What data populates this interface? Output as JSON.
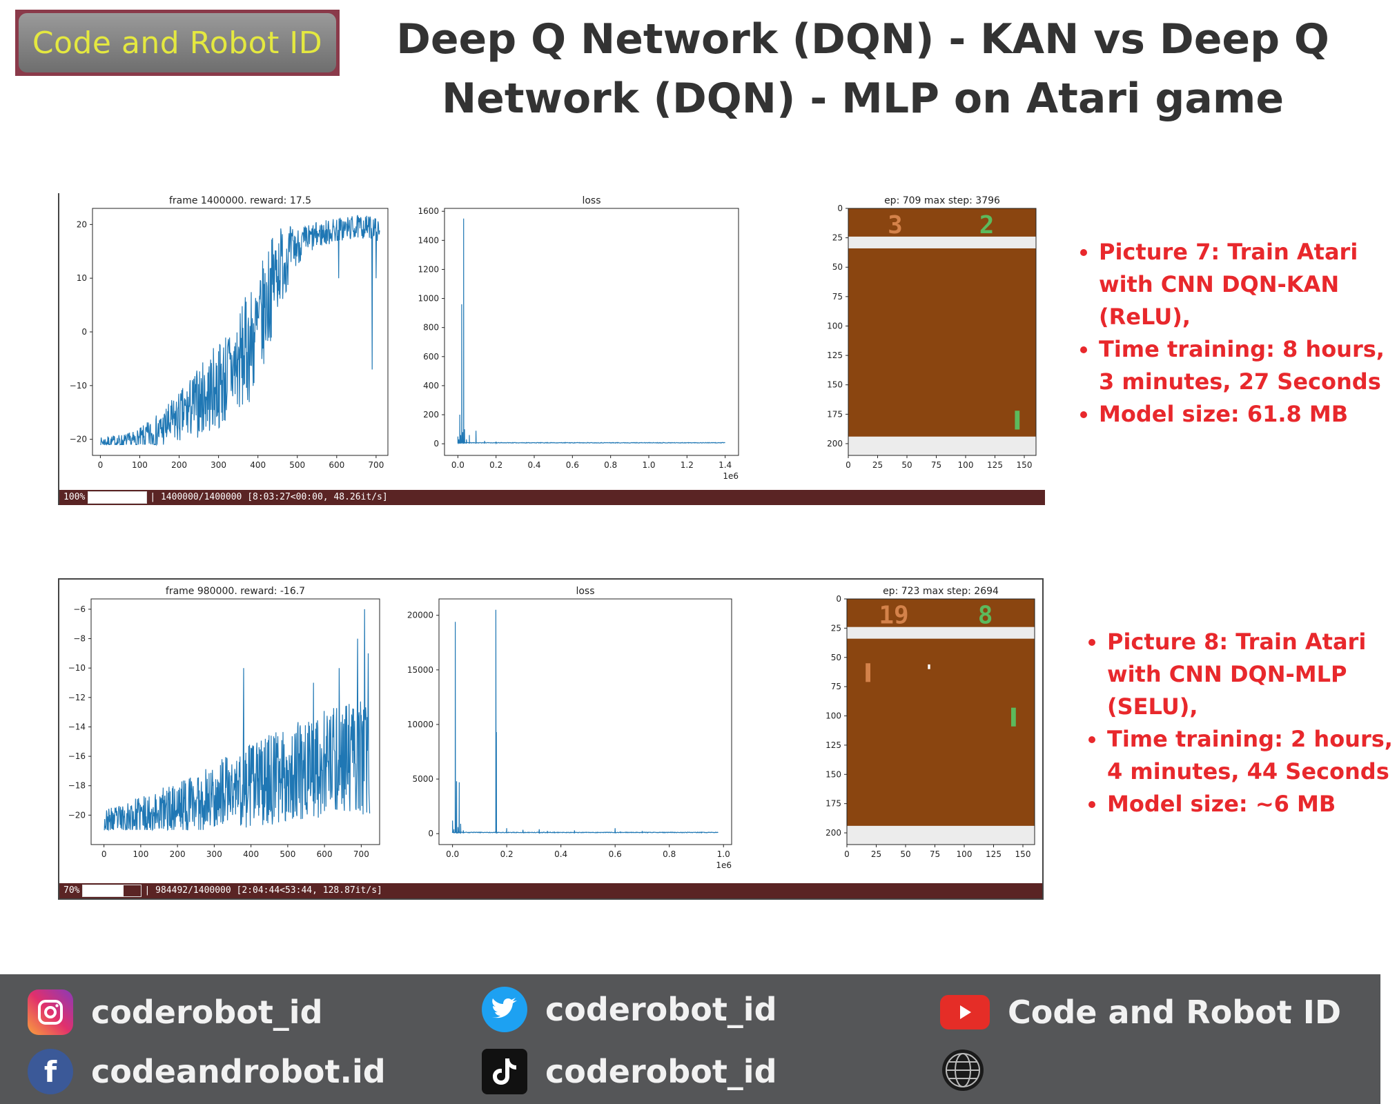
{
  "brand": {
    "logo_text": "Code and Robot ID"
  },
  "page_title": "Deep Q Network (DQN) - KAN vs Deep Q Network (DQN) - MLP on Atari game",
  "panels": [
    {
      "id": "top",
      "progress": {
        "percent_label": "100%",
        "fraction": 1.0,
        "text": "| 1400000/1400000 [8:03:27<00:00, 48.26it/s]"
      },
      "notes": [
        "Picture 7: Train Atari with CNN DQN-KAN (ReLU),",
        "Time training: 8 hours, 3 minutes, 27 Seconds",
        "Model size: 61.8 MB"
      ],
      "game": {
        "title": "ep: 709 max step: 3796",
        "score_left": "3",
        "score_right": "2",
        "xlim": [
          0,
          160
        ],
        "ylim": [
          210,
          0
        ],
        "xticks": [
          0,
          25,
          50,
          75,
          100,
          125,
          150
        ],
        "yticks": [
          0,
          25,
          50,
          75,
          100,
          125,
          150,
          175,
          200
        ],
        "bg_color": "#8a4510",
        "wall_color": "#ececec",
        "left_score_color": "#d4824a",
        "right_score_color": "#5cba5c",
        "paddles": [
          {
            "color": "#5cba5c",
            "x": 142,
            "y": 172,
            "w": 4,
            "h": 16
          }
        ],
        "ball": null
      }
    },
    {
      "id": "bottom",
      "progress": {
        "percent_label": "70%",
        "fraction": 0.7,
        "text": "| 984492/1400000 [2:04:44<53:44, 128.87it/s]"
      },
      "notes": [
        "Picture 8: Train Atari with CNN DQN-MLP (SELU),",
        "Time training: 2 hours, 4 minutes, 44 Seconds",
        "Model size: ~6 MB"
      ],
      "game": {
        "title": "ep: 723 max step: 2694",
        "score_left": "19",
        "score_right": "8",
        "xlim": [
          0,
          160
        ],
        "ylim": [
          210,
          0
        ],
        "xticks": [
          0,
          25,
          50,
          75,
          100,
          125,
          150
        ],
        "yticks": [
          0,
          25,
          50,
          75,
          100,
          125,
          150,
          175,
          200
        ],
        "bg_color": "#8a4510",
        "wall_color": "#ececec",
        "left_score_color": "#d4824a",
        "right_score_color": "#5cba5c",
        "paddles": [
          {
            "color": "#d4824a",
            "x": 16,
            "y": 55,
            "w": 4,
            "h": 16
          },
          {
            "color": "#5cba5c",
            "x": 140,
            "y": 93,
            "w": 4,
            "h": 16
          }
        ],
        "ball": {
          "color": "#ffffff",
          "x": 69,
          "y": 56,
          "w": 2,
          "h": 4
        }
      }
    }
  ],
  "chart_data": [
    {
      "type": "line",
      "panel": "top",
      "title": "frame 1400000. reward: 17.5",
      "xlabel": "",
      "ylabel": "",
      "xlim": [
        -20,
        730
      ],
      "ylim": [
        -23,
        23
      ],
      "xticks": [
        0,
        100,
        200,
        300,
        400,
        500,
        600,
        700
      ],
      "yticks": [
        -20,
        -10,
        0,
        10,
        20
      ],
      "line_color": "#1f77b4",
      "keypoints": [
        [
          0,
          -20.5
        ],
        [
          80,
          -20.5
        ],
        [
          100,
          -20
        ],
        [
          150,
          -18.5
        ],
        [
          200,
          -16
        ],
        [
          250,
          -13
        ],
        [
          300,
          -10
        ],
        [
          350,
          -6
        ],
        [
          400,
          0
        ],
        [
          425,
          6
        ],
        [
          450,
          12
        ],
        [
          500,
          16
        ],
        [
          550,
          18
        ],
        [
          600,
          19
        ],
        [
          650,
          19.5
        ],
        [
          700,
          19.5
        ],
        [
          709,
          18
        ]
      ],
      "noise": [
        [
          0,
          0.6
        ],
        [
          100,
          1.5
        ],
        [
          200,
          3.5
        ],
        [
          300,
          6
        ],
        [
          400,
          8
        ],
        [
          450,
          6
        ],
        [
          500,
          2.5
        ],
        [
          550,
          1.8
        ],
        [
          709,
          1.5
        ]
      ],
      "n_points": 709,
      "annotations": [
        {
          "x": 690,
          "y": -7
        },
        {
          "x": 605,
          "y": 10
        },
        {
          "x": 700,
          "y": 10
        }
      ]
    },
    {
      "type": "line",
      "panel": "top",
      "title": "loss",
      "x_scale_label": "1e6",
      "xlabel": "",
      "ylabel": "",
      "xlim": [
        -0.07,
        1.47
      ],
      "ylim": [
        -80,
        1620
      ],
      "xticks": [
        0.0,
        0.2,
        0.4,
        0.6,
        0.8,
        1.0,
        1.2,
        1.4
      ],
      "xtick_labels": [
        "0.0",
        "0.2",
        "0.4",
        "0.6",
        "0.8",
        "1.0",
        "1.2",
        "1.4"
      ],
      "yticks": [
        0,
        200,
        400,
        600,
        800,
        1000,
        1200,
        1400,
        1600
      ],
      "line_color": "#1f77b4",
      "x_end": 1.4,
      "baseline": 5,
      "baseline_noise": 4,
      "spikes": [
        [
          0.0,
          50
        ],
        [
          0.005,
          30
        ],
        [
          0.01,
          200
        ],
        [
          0.015,
          60
        ],
        [
          0.02,
          960
        ],
        [
          0.025,
          80
        ],
        [
          0.03,
          1550
        ],
        [
          0.035,
          100
        ],
        [
          0.045,
          30
        ],
        [
          0.06,
          60
        ],
        [
          0.095,
          90
        ],
        [
          0.14,
          20
        ],
        [
          0.2,
          15
        ]
      ]
    },
    {
      "type": "line",
      "panel": "bottom",
      "title": "frame 980000. reward: -16.7",
      "xlabel": "",
      "ylabel": "",
      "xlim": [
        -35,
        750
      ],
      "ylim": [
        -22,
        -5.3
      ],
      "xticks": [
        0,
        100,
        200,
        300,
        400,
        500,
        600,
        700
      ],
      "yticks": [
        -20,
        -18,
        -16,
        -14,
        -12,
        -10,
        -8,
        -6
      ],
      "line_color": "#1f77b4",
      "keypoints": [
        [
          0,
          -20.5
        ],
        [
          100,
          -20
        ],
        [
          200,
          -19.5
        ],
        [
          300,
          -18.7
        ],
        [
          400,
          -18
        ],
        [
          500,
          -17.2
        ],
        [
          600,
          -16.5
        ],
        [
          700,
          -16
        ],
        [
          723,
          -16.7
        ]
      ],
      "noise": [
        [
          0,
          0.6
        ],
        [
          100,
          0.9
        ],
        [
          200,
          1.3
        ],
        [
          300,
          1.6
        ],
        [
          400,
          2.1
        ],
        [
          500,
          2.3
        ],
        [
          600,
          2.6
        ],
        [
          723,
          2.8
        ]
      ],
      "n_points": 723,
      "annotations": [
        {
          "x": 709,
          "y": -6
        },
        {
          "x": 719,
          "y": -9
        },
        {
          "x": 690,
          "y": -8
        },
        {
          "x": 380,
          "y": -10
        },
        {
          "x": 570,
          "y": -11
        },
        {
          "x": 640,
          "y": -10
        }
      ]
    },
    {
      "type": "line",
      "panel": "bottom",
      "title": "loss",
      "x_scale_label": "1e6",
      "xlabel": "",
      "ylabel": "",
      "xlim": [
        -0.05,
        1.03
      ],
      "ylim": [
        -1000,
        21500
      ],
      "xticks": [
        0.0,
        0.2,
        0.4,
        0.6,
        0.8,
        1.0
      ],
      "xtick_labels": [
        "0.0",
        "0.2",
        "0.4",
        "0.6",
        "0.8",
        "1.0"
      ],
      "yticks": [
        0,
        5000,
        10000,
        15000,
        20000
      ],
      "line_color": "#1f77b4",
      "x_end": 0.98,
      "baseline": 80,
      "baseline_noise": 60,
      "spikes": [
        [
          0.0,
          1200
        ],
        [
          0.005,
          400
        ],
        [
          0.01,
          19400
        ],
        [
          0.015,
          4800
        ],
        [
          0.02,
          600
        ],
        [
          0.025,
          4700
        ],
        [
          0.03,
          900
        ],
        [
          0.04,
          300
        ],
        [
          0.16,
          20500
        ],
        [
          0.162,
          9300
        ],
        [
          0.2,
          500
        ],
        [
          0.26,
          350
        ],
        [
          0.32,
          400
        ],
        [
          0.35,
          250
        ],
        [
          0.45,
          300
        ],
        [
          0.6,
          500
        ],
        [
          0.62,
          200
        ],
        [
          0.7,
          250
        ],
        [
          0.85,
          150
        ]
      ]
    }
  ],
  "footer": {
    "instagram": "coderobot_id",
    "facebook": "codeandrobot.id",
    "twitter": "coderobot_id",
    "tiktok": "coderobot_id",
    "youtube": "Code and Robot ID",
    "colors": {
      "youtube": "#e52d27",
      "facebook": "#3b5998",
      "twitter": "#1da1f2",
      "tiktok": "#111111"
    }
  }
}
